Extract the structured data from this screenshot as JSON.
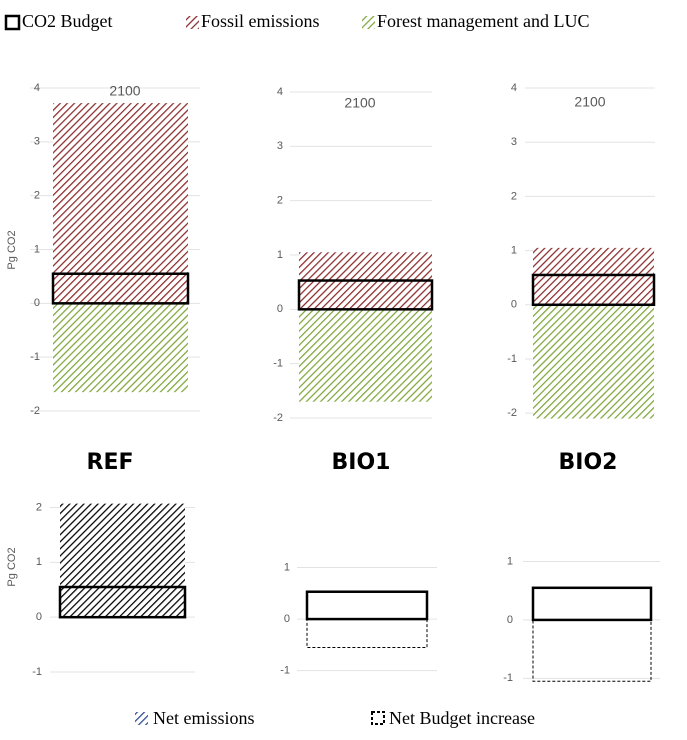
{
  "chart_data": [
    {
      "type": "bar",
      "title": "REF",
      "annotation": "2100",
      "ylabel": "Pg CO2",
      "ylim": [
        -2,
        4
      ],
      "yticks": [
        -2,
        -1,
        0,
        1,
        2,
        3,
        4
      ],
      "grid": true,
      "series": [
        {
          "name": "CO2 Budget",
          "color": "#000000",
          "style": "outline",
          "values": [
            0.55
          ]
        },
        {
          "name": "Fossil emissions",
          "color": "#8b2a2a",
          "style": "hatch",
          "values": [
            3.72
          ]
        },
        {
          "name": "Forest management and LUC",
          "color": "#7ea63a",
          "style": "hatch",
          "values": [
            -1.65
          ]
        }
      ]
    },
    {
      "type": "bar",
      "title": "BIO1",
      "annotation": "2100",
      "ylim": [
        -2,
        4
      ],
      "yticks": [
        -2,
        -1,
        0,
        1,
        2,
        3,
        4
      ],
      "grid": true,
      "series": [
        {
          "name": "CO2 Budget",
          "color": "#000000",
          "style": "outline",
          "values": [
            0.53
          ]
        },
        {
          "name": "Fossil emissions",
          "color": "#8b2a2a",
          "style": "hatch",
          "values": [
            1.05
          ]
        },
        {
          "name": "Forest management and LUC",
          "color": "#7ea63a",
          "style": "hatch",
          "values": [
            -1.7
          ]
        }
      ]
    },
    {
      "type": "bar",
      "title": "BIO2",
      "annotation": "2100",
      "ylim": [
        -2.2,
        4
      ],
      "yticks": [
        -2,
        -1,
        0,
        1,
        2,
        3,
        4
      ],
      "grid": true,
      "series": [
        {
          "name": "CO2 Budget",
          "color": "#000000",
          "style": "outline",
          "values": [
            0.55
          ]
        },
        {
          "name": "Fossil emissions",
          "color": "#8b2a2a",
          "style": "hatch",
          "values": [
            1.05
          ]
        },
        {
          "name": "Forest management and LUC",
          "color": "#7ea63a",
          "style": "hatch",
          "values": [
            -2.1
          ]
        }
      ]
    },
    {
      "type": "bar",
      "ylabel": "Pg CO2",
      "ylim": [
        -1.2,
        2.1
      ],
      "yticks": [
        -1,
        0,
        1,
        2
      ],
      "grid": true,
      "series": [
        {
          "name": "CO2 Budget",
          "color": "#000000",
          "style": "outline",
          "values": [
            0.55
          ]
        },
        {
          "name": "Net emissions",
          "color": "#000000",
          "style": "hatch",
          "values": [
            2.07
          ]
        }
      ]
    },
    {
      "type": "bar",
      "ylim": [
        -1.2,
        1.3
      ],
      "yticks": [
        -1,
        0,
        1
      ],
      "grid": true,
      "series": [
        {
          "name": "CO2 Budget",
          "color": "#000000",
          "style": "outline",
          "values": [
            0.53
          ]
        },
        {
          "name": "Net Budget increase",
          "color": "#000000",
          "style": "dashed",
          "values": [
            -0.55
          ]
        }
      ]
    },
    {
      "type": "bar",
      "ylim": [
        -1.2,
        1.3
      ],
      "yticks": [
        -1,
        0,
        1
      ],
      "grid": true,
      "series": [
        {
          "name": "CO2 Budget",
          "color": "#000000",
          "style": "outline",
          "values": [
            0.55
          ]
        },
        {
          "name": "Net Budget increase",
          "color": "#000000",
          "style": "dashed",
          "values": [
            -1.05
          ]
        }
      ]
    }
  ]
}
